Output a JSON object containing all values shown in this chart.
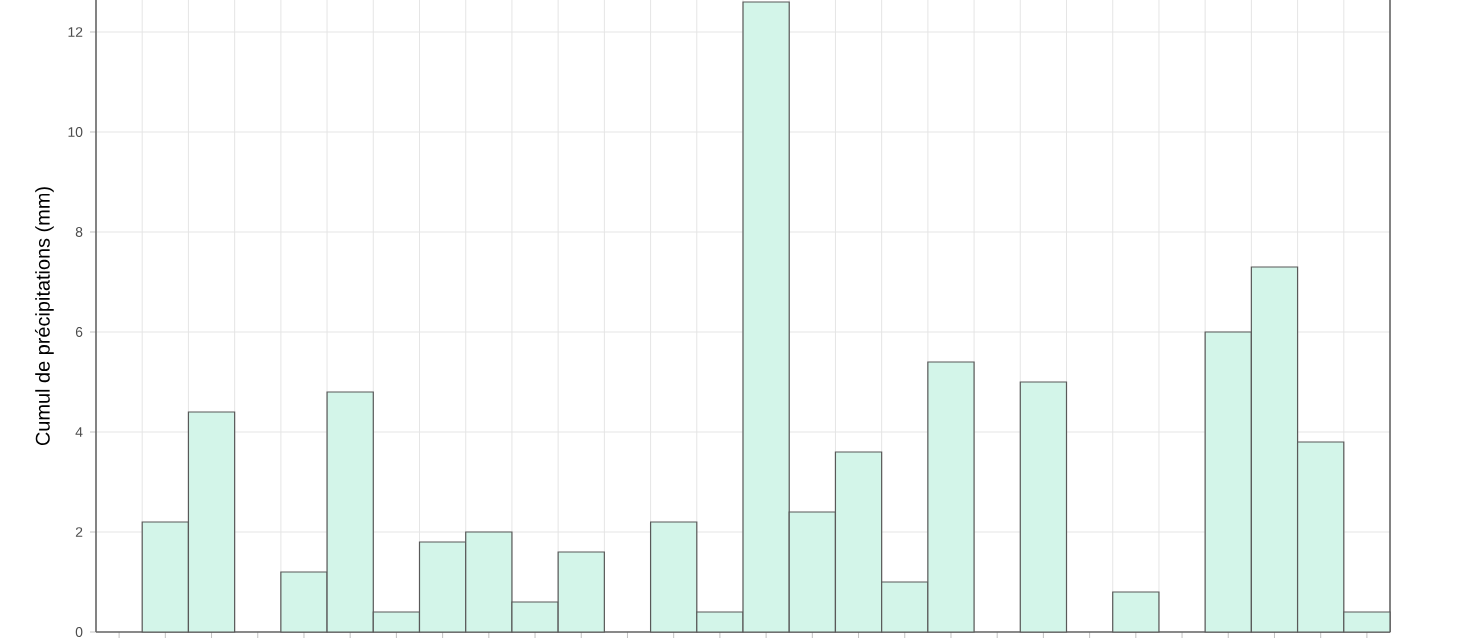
{
  "chart_data": {
    "type": "bar",
    "ylabel": "Cumul de précipitations (mm)",
    "categories": [
      null,
      null,
      null,
      null,
      null,
      null,
      null,
      null,
      null,
      null,
      null,
      null,
      null,
      null,
      null,
      null,
      null,
      null,
      null,
      null,
      null,
      null,
      null,
      null,
      null,
      null,
      null,
      null
    ],
    "values": [
      null,
      2.2,
      4.4,
      null,
      1.2,
      4.8,
      0.4,
      1.8,
      2.0,
      0.6,
      1.6,
      null,
      2.2,
      0.4,
      12.6,
      2.4,
      3.6,
      1.0,
      5.4,
      null,
      5.0,
      null,
      0.8,
      null,
      6.0,
      7.3,
      3.8,
      0.4
    ],
    "color": "#d3f5e9",
    "ylim": [
      0,
      12.64
    ],
    "yticks": [
      0,
      2,
      4,
      6,
      8,
      10,
      12
    ],
    "grid": true,
    "tick_labels": "y"
  }
}
